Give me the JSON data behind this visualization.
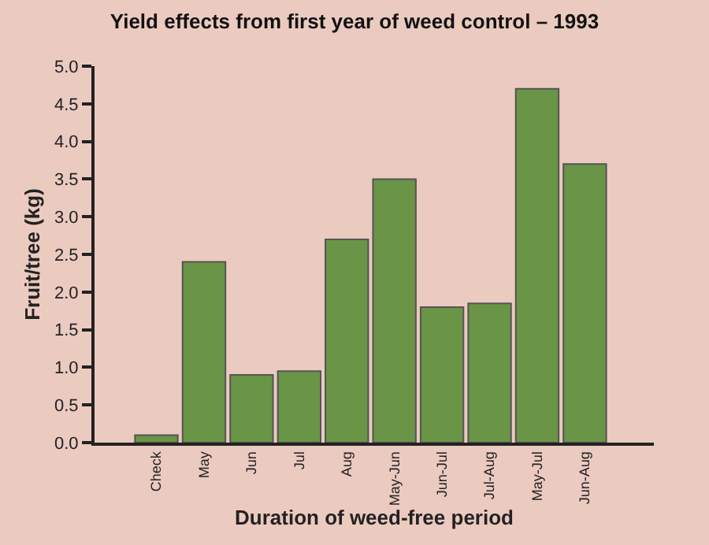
{
  "chart_data": {
    "type": "bar",
    "title": "Yield effects from first year of weed control – 1993",
    "xlabel": "Duration of weed-free period",
    "ylabel": "Fruit/tree (kg)",
    "categories": [
      "Check",
      "May",
      "Jun",
      "Jul",
      "Aug",
      "May-Jun",
      "Jun-Jul",
      "Jul-Aug",
      "May-Jul",
      "Jun-Aug"
    ],
    "values": [
      0.1,
      2.4,
      0.9,
      0.95,
      2.7,
      3.5,
      1.8,
      1.85,
      4.7,
      3.7
    ],
    "color": "#6a9446",
    "ylim": [
      0,
      5
    ],
    "yticks": [
      {
        "value": 0,
        "label": "0.0"
      },
      {
        "value": 0.5,
        "label": "0.5"
      },
      {
        "value": 1,
        "label": "1.0"
      },
      {
        "value": 1.5,
        "label": "1.5"
      },
      {
        "value": 2,
        "label": "2.0"
      },
      {
        "value": 2.5,
        "label": "2.5"
      },
      {
        "value": 3,
        "label": "3.0"
      },
      {
        "value": 3.5,
        "label": "3.5"
      },
      {
        "value": 4,
        "label": "4.0"
      },
      {
        "value": 4.5,
        "label": "4.5"
      },
      {
        "value": 5,
        "label": "5.0"
      }
    ],
    "grid": false
  }
}
